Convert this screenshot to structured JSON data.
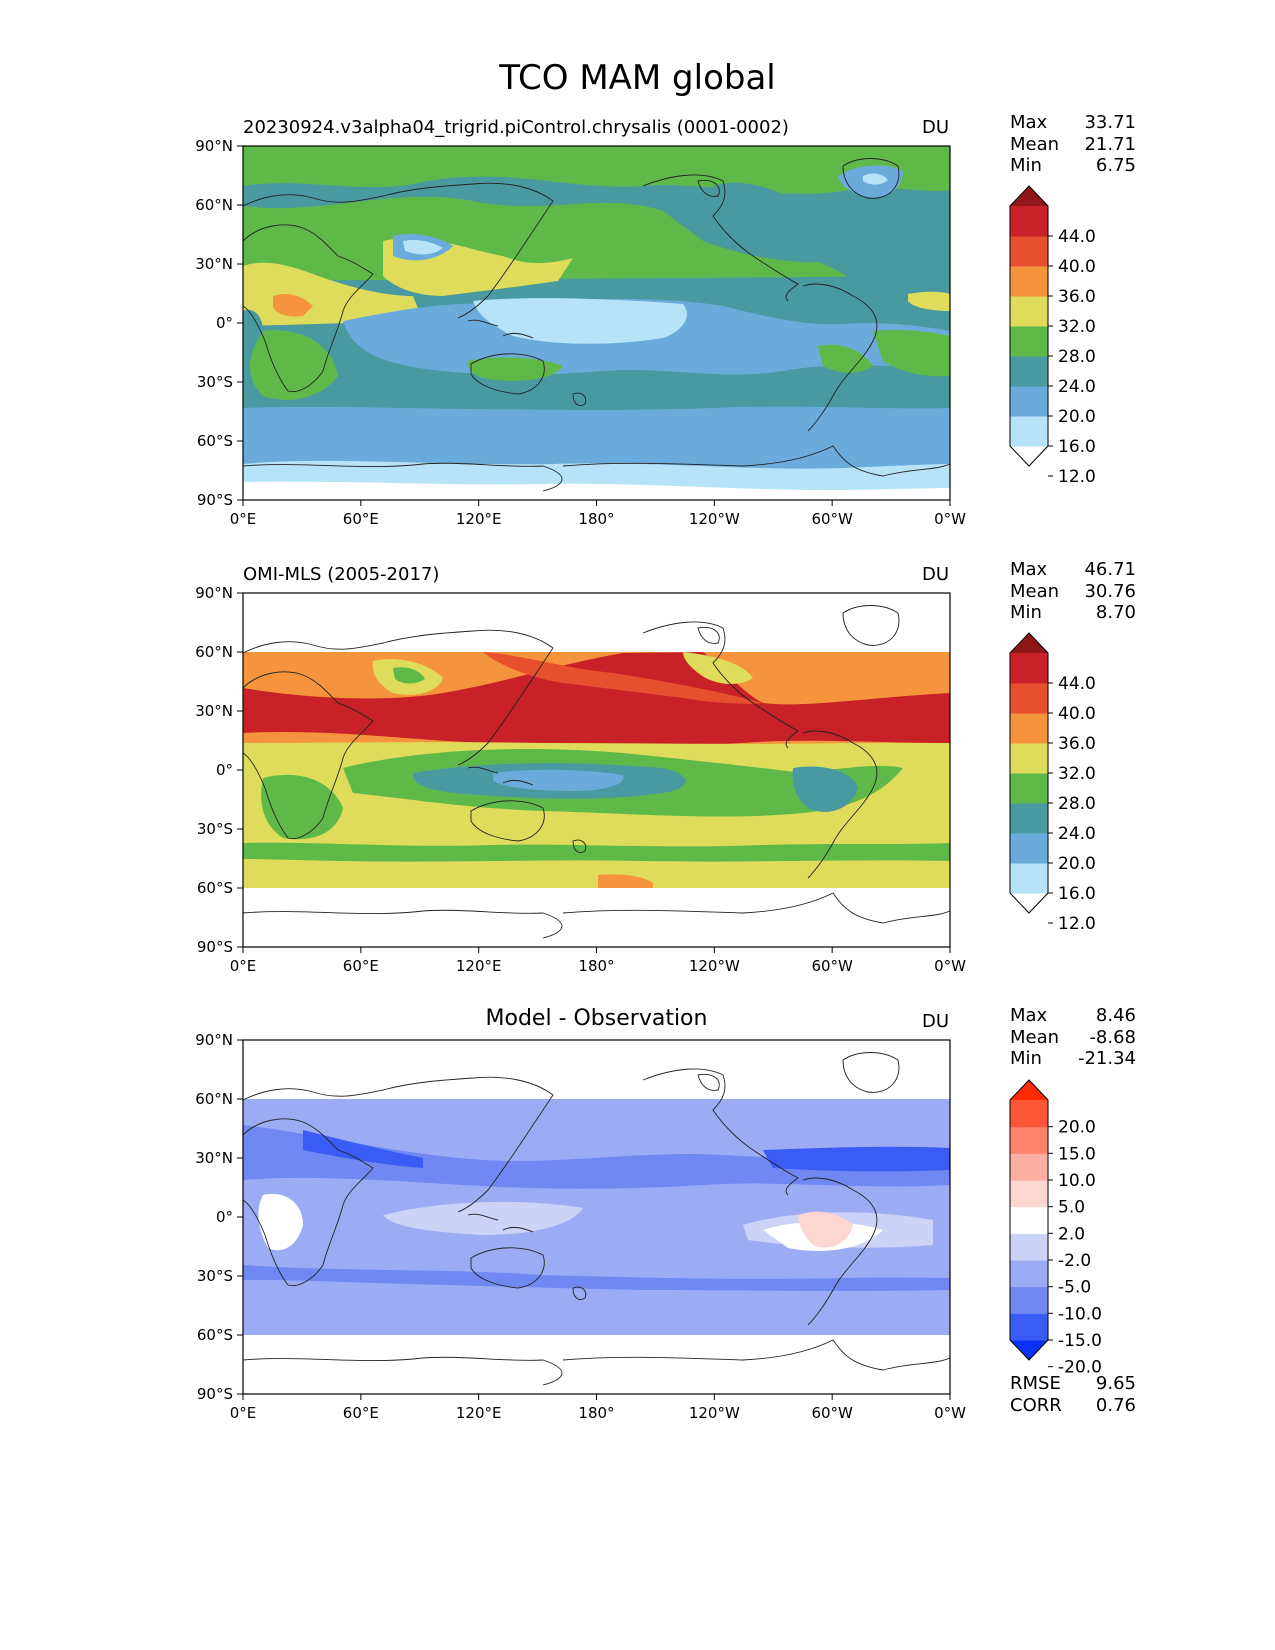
{
  "figure": {
    "title": "TCO MAM global"
  },
  "axes": {
    "lat_ticks": [
      "90°N",
      "60°N",
      "30°N",
      "0°",
      "30°S",
      "60°S",
      "90°S"
    ],
    "lon_ticks": [
      "0°E",
      "60°E",
      "120°E",
      "180°",
      "120°W",
      "60°W",
      "0°W"
    ]
  },
  "panels": [
    {
      "title": "20230924.v3alpha04_trigrid.piControl.chrysalis (0001-0002)",
      "title_style": "left",
      "units": "DU",
      "stats": [
        {
          "label": "Max",
          "value": "33.71"
        },
        {
          "label": "Mean",
          "value": "21.71"
        },
        {
          "label": "Min",
          "value": "6.75"
        }
      ],
      "colorbar": {
        "labels": [
          "44.0",
          "40.0",
          "36.0",
          "32.0",
          "28.0",
          "24.0",
          "20.0",
          "16.0",
          "12.0"
        ],
        "colors": [
          "#ffffff",
          "#b6e3f8",
          "#6aabdc",
          "#4899a0",
          "#5fb948",
          "#dedc5a",
          "#f5943c",
          "#e6502e",
          "#c82228",
          "#8e1819"
        ]
      },
      "bottom_stats": []
    },
    {
      "title": "OMI-MLS (2005-2017)",
      "title_style": "left",
      "units": "DU",
      "stats": [
        {
          "label": "Max",
          "value": "46.71"
        },
        {
          "label": "Mean",
          "value": "30.76"
        },
        {
          "label": "Min",
          "value": "8.70"
        }
      ],
      "colorbar": {
        "labels": [
          "44.0",
          "40.0",
          "36.0",
          "32.0",
          "28.0",
          "24.0",
          "20.0",
          "16.0",
          "12.0"
        ],
        "colors": [
          "#ffffff",
          "#b6e3f8",
          "#6aabdc",
          "#4899a0",
          "#5fb948",
          "#dedc5a",
          "#f5943c",
          "#e6502e",
          "#c82228",
          "#8e1819"
        ]
      },
      "bottom_stats": []
    },
    {
      "title": "Model - Observation",
      "title_style": "center",
      "units": "DU",
      "stats": [
        {
          "label": "Max",
          "value": "8.46"
        },
        {
          "label": "Mean",
          "value": "-8.68"
        },
        {
          "label": "Min",
          "value": "-21.34"
        }
      ],
      "colorbar": {
        "labels": [
          "20.0",
          "15.0",
          "10.0",
          "5.0",
          "2.0",
          "-2.0",
          "-5.0",
          "-10.0",
          "-15.0",
          "-20.0"
        ],
        "colors": [
          "#0a32f5",
          "#3a5cf5",
          "#6f88f2",
          "#9bacf4",
          "#cbd3f6",
          "#ffffff",
          "#fdd6d0",
          "#fcaea2",
          "#fd836f",
          "#fc5638",
          "#ff2a00"
        ]
      },
      "bottom_stats": [
        {
          "label": "RMSE",
          "value": "9.65"
        },
        {
          "label": "CORR",
          "value": "0.76"
        }
      ]
    }
  ]
}
